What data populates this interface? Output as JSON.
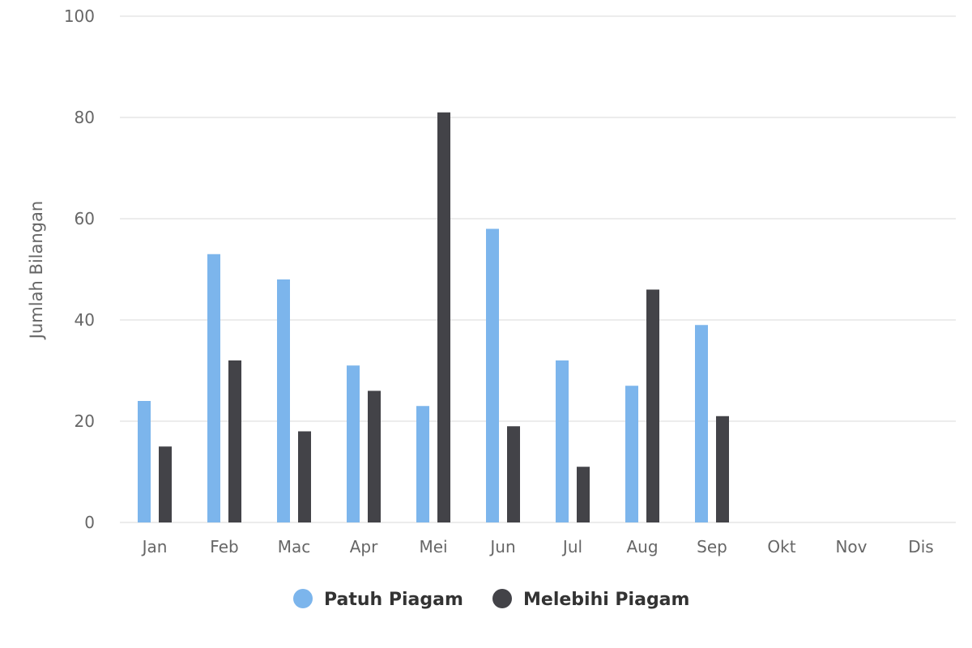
{
  "chart_data": {
    "type": "bar",
    "categories": [
      "Jan",
      "Feb",
      "Mac",
      "Apr",
      "Mei",
      "Jun",
      "Jul",
      "Aug",
      "Sep",
      "Okt",
      "Nov",
      "Dis"
    ],
    "series": [
      {
        "name": "Patuh Piagam",
        "color": "#7cb5ec",
        "values": [
          24,
          53,
          48,
          31,
          23,
          58,
          32,
          27,
          39,
          null,
          null,
          null
        ]
      },
      {
        "name": "Melebihi Piagam",
        "color": "#434348",
        "values": [
          15,
          32,
          18,
          26,
          81,
          19,
          11,
          46,
          21,
          null,
          null,
          null
        ]
      }
    ],
    "xlabel": "",
    "ylabel": "Jumlah Bilangan",
    "ylim": [
      0,
      100
    ],
    "yticks": [
      "0",
      "20",
      "40",
      "60",
      "80",
      "100"
    ],
    "grid": true,
    "legend_position": "bottom-center"
  }
}
